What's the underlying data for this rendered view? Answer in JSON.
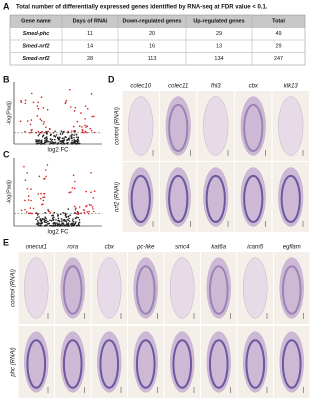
{
  "panels": {
    "A": {
      "label": "A",
      "title": "Total number of differentially expressed genes identified by RNA-seq at FDR value < 0.1.",
      "table": {
        "columns": [
          "Gene name",
          "Days of RNAi",
          "Down-regulated genes",
          "Up-regulated genes",
          "Total"
        ],
        "rows": [
          [
            "Smed-phc",
            11,
            20,
            29,
            49
          ],
          [
            "Smed-nrf2",
            14,
            16,
            13,
            29
          ],
          [
            "Smed-nrf2",
            28,
            113,
            134,
            247
          ]
        ]
      }
    },
    "B": {
      "label": "B",
      "y_label": "-log(Padj)",
      "x_label": "log2 FC"
    },
    "C": {
      "label": "C",
      "y_label": "-log(Padj)",
      "x_label": "log2 FC"
    },
    "D": {
      "label": "D",
      "columns": [
        "colec10",
        "colec11",
        "fhl3",
        "cbx",
        "klk13"
      ],
      "rows": [
        "control (RNAi)",
        "nrf2 (RNAi)"
      ]
    },
    "E": {
      "label": "E",
      "columns": [
        "onecut1",
        "rora",
        "cbx",
        "pc-like",
        "smc4",
        "kat6a",
        "icam5",
        "egflam"
      ],
      "rows": [
        "control (RNAi)",
        "phc (RNAi)"
      ]
    }
  }
}
